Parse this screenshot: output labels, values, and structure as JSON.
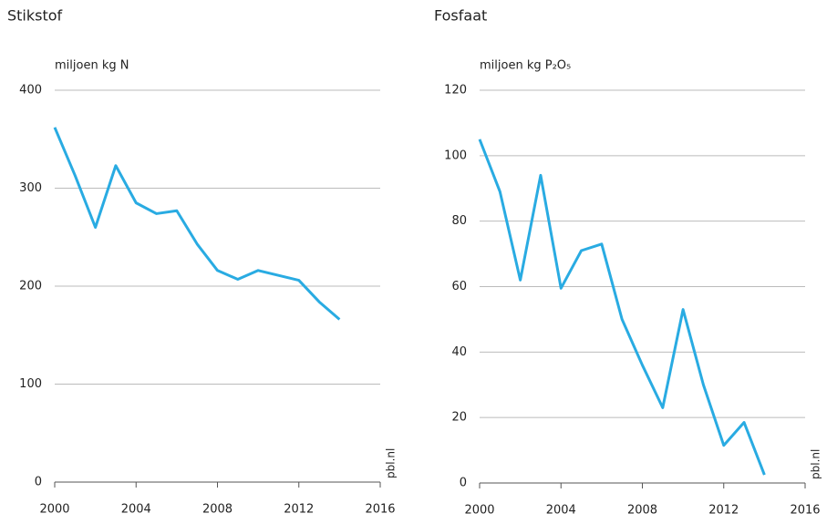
{
  "chart_data": [
    {
      "type": "line",
      "title": "Stikstof",
      "y_label": "miljoen kg N",
      "source": "pbl.nl",
      "x": [
        2000,
        2001,
        2002,
        2003,
        2004,
        2005,
        2006,
        2007,
        2008,
        2009,
        2010,
        2011,
        2012,
        2013,
        2014
      ],
      "series": [
        {
          "name": "Stikstof",
          "color": "#29abe2",
          "values": [
            362,
            313,
            260,
            323,
            285,
            274,
            277,
            243,
            216,
            207,
            216,
            211,
            206,
            184,
            166
          ]
        }
      ],
      "xlim": [
        2000,
        2016
      ],
      "xticks": [
        2000,
        2004,
        2008,
        2012,
        2016
      ],
      "ylim": [
        0,
        400
      ],
      "yticks": [
        0,
        100,
        200,
        300,
        400
      ],
      "grid": true
    },
    {
      "type": "line",
      "title": "Fosfaat",
      "y_label": "miljoen kg P₂O₅",
      "source": "pbl.nl",
      "x": [
        2000,
        2001,
        2002,
        2003,
        2004,
        2005,
        2006,
        2007,
        2008,
        2009,
        2010,
        2011,
        2012,
        2013,
        2014
      ],
      "series": [
        {
          "name": "Fosfaat",
          "color": "#29abe2",
          "values": [
            105,
            89,
            62,
            94,
            59.5,
            71,
            73,
            50,
            36,
            23,
            53,
            30,
            11.5,
            18.5,
            2.5
          ]
        }
      ],
      "xlim": [
        2000,
        2016
      ],
      "xticks": [
        2000,
        2004,
        2008,
        2012,
        2016
      ],
      "ylim": [
        0,
        120
      ],
      "yticks": [
        0,
        20,
        40,
        60,
        80,
        100,
        120
      ],
      "grid": true
    }
  ]
}
